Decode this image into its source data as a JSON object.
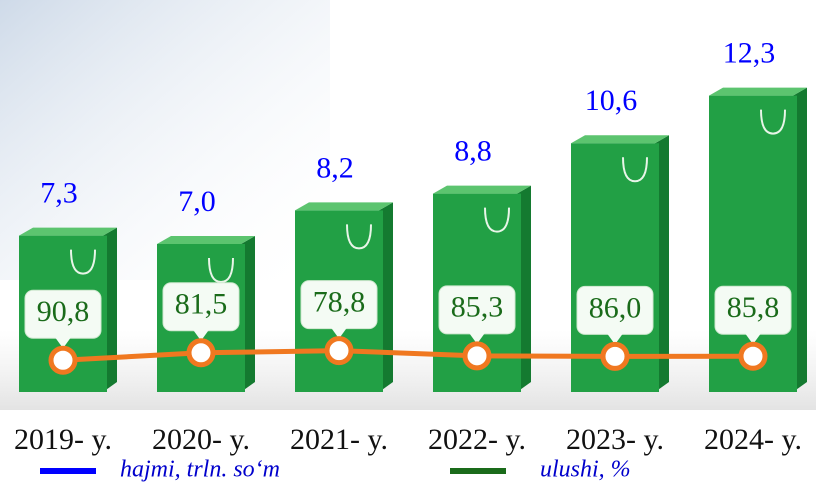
{
  "chart_data": {
    "type": "bar",
    "categories": [
      "2019- y.",
      "2020- y.",
      "2021- y.",
      "2022- y.",
      "2023- y.",
      "2024- y."
    ],
    "series": [
      {
        "name": "hajmi, trln. so‘m",
        "color": "#0000ff",
        "values": [
          7.3,
          7.0,
          8.2,
          8.8,
          10.6,
          12.3
        ],
        "value_labels": [
          "7,3",
          "7,0",
          "8,2",
          "8,8",
          "10,6",
          "12,3"
        ]
      },
      {
        "name": "ulushi, %",
        "color": "#1a6b1a",
        "type": "line",
        "values": [
          90.8,
          81.5,
          78.8,
          85.3,
          86.0,
          85.8
        ],
        "value_labels": [
          "90,8",
          "81,5",
          "78,8",
          "85,3",
          "86,0",
          "85,8"
        ]
      }
    ],
    "bar_color": "#22a045",
    "line_color": "#f07820"
  }
}
